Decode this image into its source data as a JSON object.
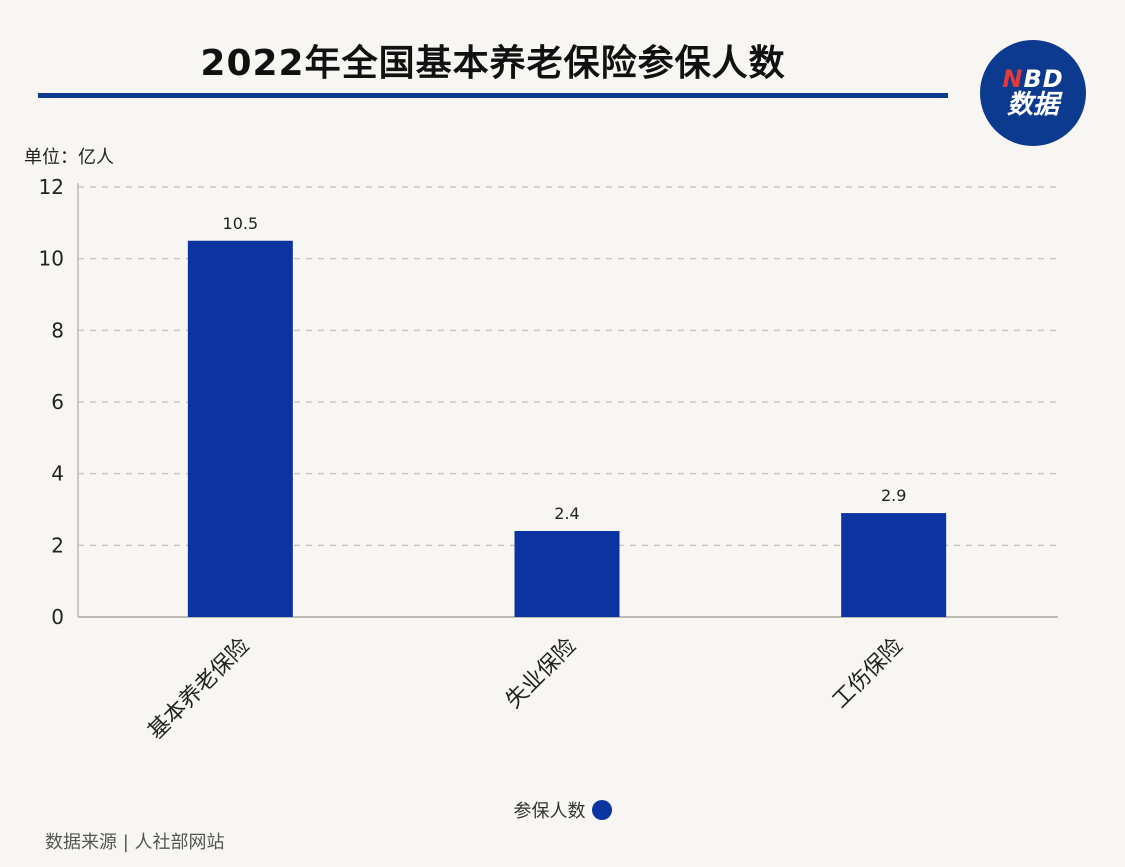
{
  "header": {
    "title": "2022年全国基本养老保险参保人数",
    "logo_top": "NBD",
    "logo_bottom": "数据",
    "unit": "单位：亿人"
  },
  "colors": {
    "accent": "#0c3a8f",
    "bar": "#0c34a0",
    "grid": "#c9c6c0",
    "background": "#f8f6f2"
  },
  "chart_data": {
    "type": "bar",
    "categories": [
      "基本养老保险",
      "失业保险",
      "工伤保险"
    ],
    "series": [
      {
        "name": "参保人数",
        "values": [
          10.5,
          2.4,
          2.9
        ]
      }
    ],
    "data_labels": [
      "10.5",
      "2.4",
      "2.9"
    ],
    "yticks": [
      0,
      2,
      4,
      6,
      8,
      10,
      12
    ],
    "ylim": [
      0,
      12
    ],
    "grid": true,
    "grid_style": "dashed",
    "legend_position": "bottom-center",
    "xlabel_rotation": -45
  },
  "legend": {
    "label": "参保人数"
  },
  "footer": {
    "source": "数据来源 | 人社部网站"
  }
}
